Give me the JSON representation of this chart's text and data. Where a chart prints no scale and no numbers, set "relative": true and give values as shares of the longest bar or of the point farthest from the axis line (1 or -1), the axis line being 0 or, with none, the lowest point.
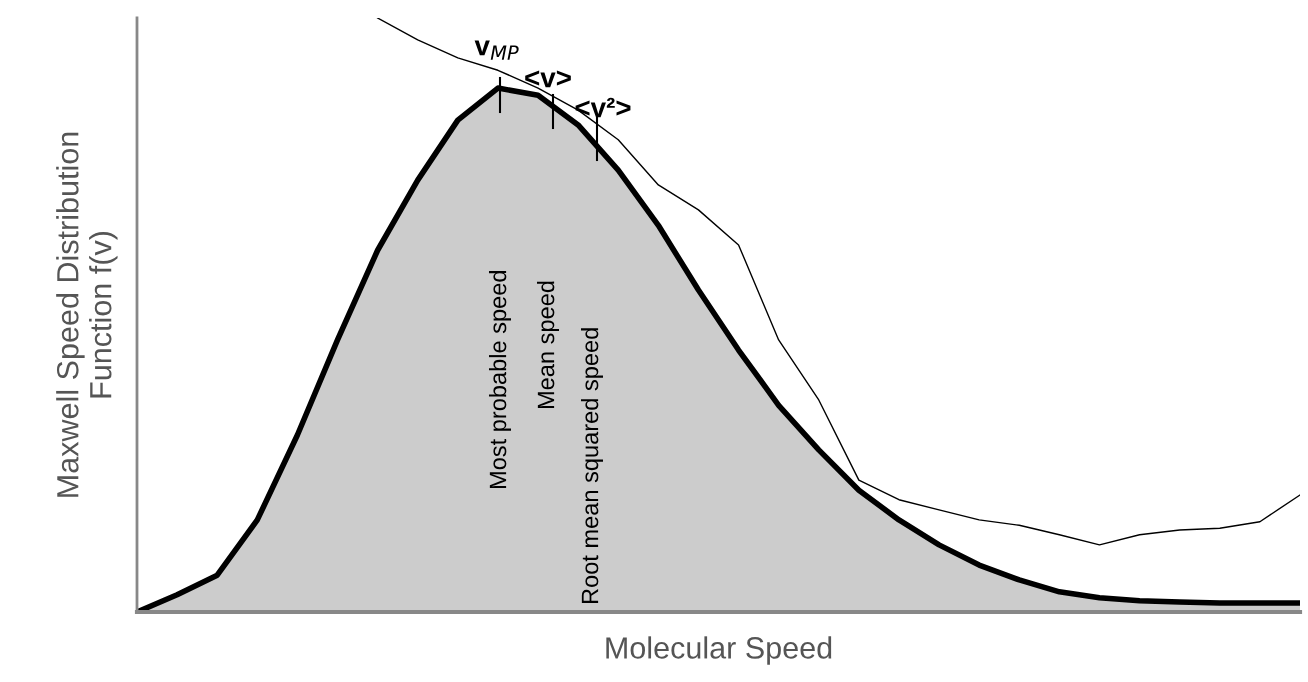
{
  "chart_data": {
    "type": "area",
    "relative": true,
    "xlabel": "Molecular Speed",
    "ylabel": "Maxwell Speed Distribution\nFunction f(v)",
    "grid": false,
    "categories": [
      null,
      null,
      null,
      null,
      null,
      null,
      null,
      null,
      null,
      null,
      null,
      null,
      null,
      null,
      null,
      null,
      null,
      null,
      null,
      null,
      null,
      null,
      null,
      null,
      null,
      null,
      null,
      null,
      null,
      null
    ],
    "series": [
      {
        "color": "#cccccc",
        "values": [
          0,
          0.029,
          0.062,
          0.155,
          0.298,
          0.458,
          0.609,
          0.727,
          0.828,
          0.882,
          0.87,
          0.82,
          0.744,
          0.651,
          0.542,
          0.441,
          0.348,
          0.273,
          0.205,
          0.155,
          0.113,
          0.079,
          0.054,
          0.034,
          0.024,
          0.019,
          0.017,
          0.015,
          0.015,
          0.015
        ]
      },
      {
        "type": "line",
        "color": "#000000",
        "values": [
          null,
          null,
          null,
          null,
          null,
          null,
          1.0,
          0.963,
          0.933,
          0.912,
          0.882,
          0.845,
          0.795,
          0.719,
          0.677,
          0.618,
          0.458,
          0.357,
          0.222,
          0.189,
          0.172,
          0.155,
          0.146,
          0.13,
          0.113,
          0.13,
          0.138,
          0.141,
          0.152,
          0.197
        ]
      }
    ],
    "annotations": [
      "v$_{MP}$",
      "<v>",
      "<v²>",
      "Most probable speed",
      "Mean speed",
      "Root mean squared speed"
    ]
  }
}
